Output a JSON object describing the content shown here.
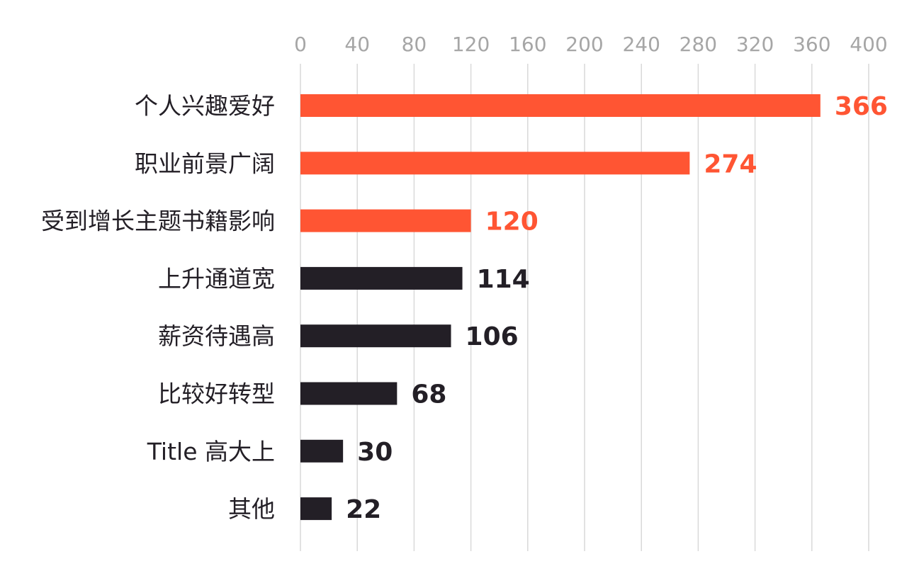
{
  "chart_data": {
    "type": "bar",
    "orientation": "horizontal",
    "categories": [
      "个人兴趣爱好",
      "职业前景广阔",
      "受到增长主题书籍影响",
      "上升通道宽",
      "薪资待遇高",
      "比较好转型",
      "Title 高大上",
      "其他"
    ],
    "values": [
      366,
      274,
      120,
      114,
      106,
      68,
      30,
      22
    ],
    "highlight_count": 3,
    "xlim": [
      0,
      400
    ],
    "xticks": [
      0,
      40,
      80,
      120,
      160,
      200,
      240,
      280,
      320,
      360,
      400
    ],
    "x_axis_position": "top",
    "grid": true,
    "data_labels": true,
    "colors": {
      "highlight": "#ff5533",
      "default": "#231f26",
      "grid": "#d9d9d9",
      "tick": "#a6a6a6"
    }
  }
}
